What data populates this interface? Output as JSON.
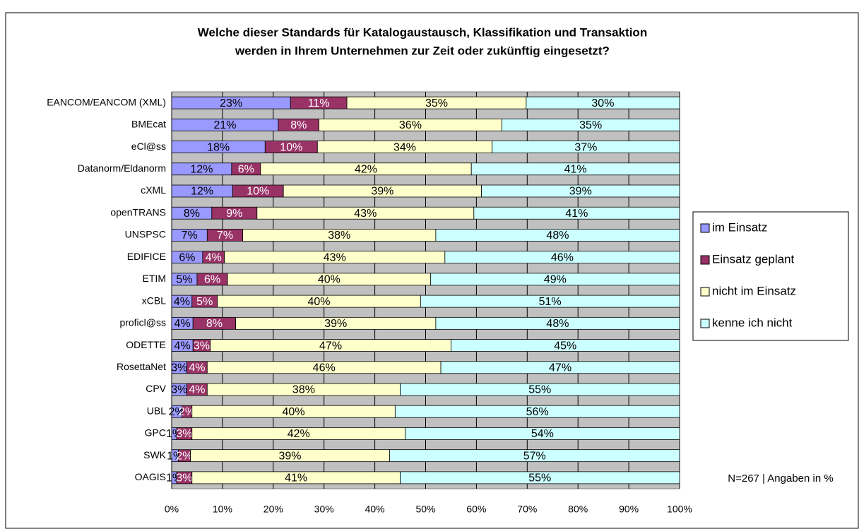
{
  "chart_data": {
    "type": "stacked_bar_horizontal",
    "title": [
      "Welche dieser Standards für Katalogaustausch, Klassifikation und Transaktion",
      "werden in Ihrem Unternehmen zur Zeit oder zukünftig eingesetzt?"
    ],
    "categories": [
      "EANCOM/EANCOM (XML)",
      "BMEcat",
      "eCl@ss",
      "Datanorm/Eldanorm",
      "cXML",
      "openTRANS",
      "UNSPSC",
      "EDIFICE",
      "ETIM",
      "xCBL",
      "proficl@ss",
      "ODETTE",
      "RosettaNet",
      "CPV",
      "UBL",
      "GPC",
      "SWK",
      "OAGIS"
    ],
    "series": [
      {
        "name": "im Einsatz",
        "color": "#9999ff",
        "values": [
          23.4,
          21,
          18.4,
          11.8,
          12,
          7.9,
          7,
          6.1,
          5,
          4,
          4.2,
          4.2,
          3,
          3,
          2,
          1,
          1.3,
          1
        ],
        "value_labels": [
          "23%",
          "21%",
          "18%",
          "12%",
          "12%",
          "8%",
          "7%",
          "6%",
          "5%",
          "4%",
          "4%",
          "4%",
          "3%",
          "3%",
          "2%",
          "1%",
          "1%",
          "1%"
        ]
      },
      {
        "name": "Einsatz geplant",
        "color": "#993366",
        "values": [
          11.1,
          8,
          10.3,
          5.7,
          10,
          8.9,
          7,
          4.3,
          6,
          5,
          8.4,
          3.4,
          4,
          4,
          2,
          3,
          2.4,
          3
        ],
        "value_labels": [
          "11%",
          "8%",
          "10%",
          "6%",
          "10%",
          "9%",
          "7%",
          "4%",
          "6%",
          "5%",
          "8%",
          "3%",
          "4%",
          "4%",
          "2%",
          "3%",
          "2%",
          "3%"
        ]
      },
      {
        "name": "nicht im Einsatz",
        "color": "#ffffcc",
        "values": [
          35.3,
          36,
          34.4,
          41.5,
          39,
          42.7,
          38,
          43.4,
          40,
          40,
          39.4,
          47.4,
          46,
          38,
          40,
          42,
          39.2,
          41
        ],
        "value_labels": [
          "35%",
          "36%",
          "34%",
          "42%",
          "39%",
          "43%",
          "38%",
          "43%",
          "40%",
          "40%",
          "39%",
          "47%",
          "46%",
          "38%",
          "40%",
          "42%",
          "39%",
          "41%"
        ]
      },
      {
        "name": "kenne ich nicht",
        "color": "#ccffff",
        "values": [
          30.2,
          35,
          36.9,
          41,
          39,
          40.5,
          48,
          46.2,
          49,
          51,
          48,
          45,
          47,
          55,
          56,
          54,
          57.1,
          55
        ],
        "value_labels": [
          "30%",
          "35%",
          "37%",
          "41%",
          "39%",
          "41%",
          "48%",
          "46%",
          "49%",
          "51%",
          "48%",
          "45%",
          "47%",
          "55%",
          "56%",
          "54%",
          "57%",
          "55%"
        ]
      }
    ],
    "xlim": [
      0,
      100
    ],
    "xticks": [
      {
        "value": 0,
        "label": "0%"
      },
      {
        "value": 10,
        "label": "10%"
      },
      {
        "value": 20,
        "label": "20%"
      },
      {
        "value": 30,
        "label": "30%"
      },
      {
        "value": 40,
        "label": "40%"
      },
      {
        "value": 50,
        "label": "50%"
      },
      {
        "value": 60,
        "label": "60%"
      },
      {
        "value": 70,
        "label": "70%"
      },
      {
        "value": 80,
        "label": "80%"
      },
      {
        "value": 90,
        "label": "90%"
      },
      {
        "value": 100,
        "label": "100%"
      }
    ],
    "grid": true,
    "legend": "right",
    "annotation": "N=267 | Angaben in %"
  }
}
